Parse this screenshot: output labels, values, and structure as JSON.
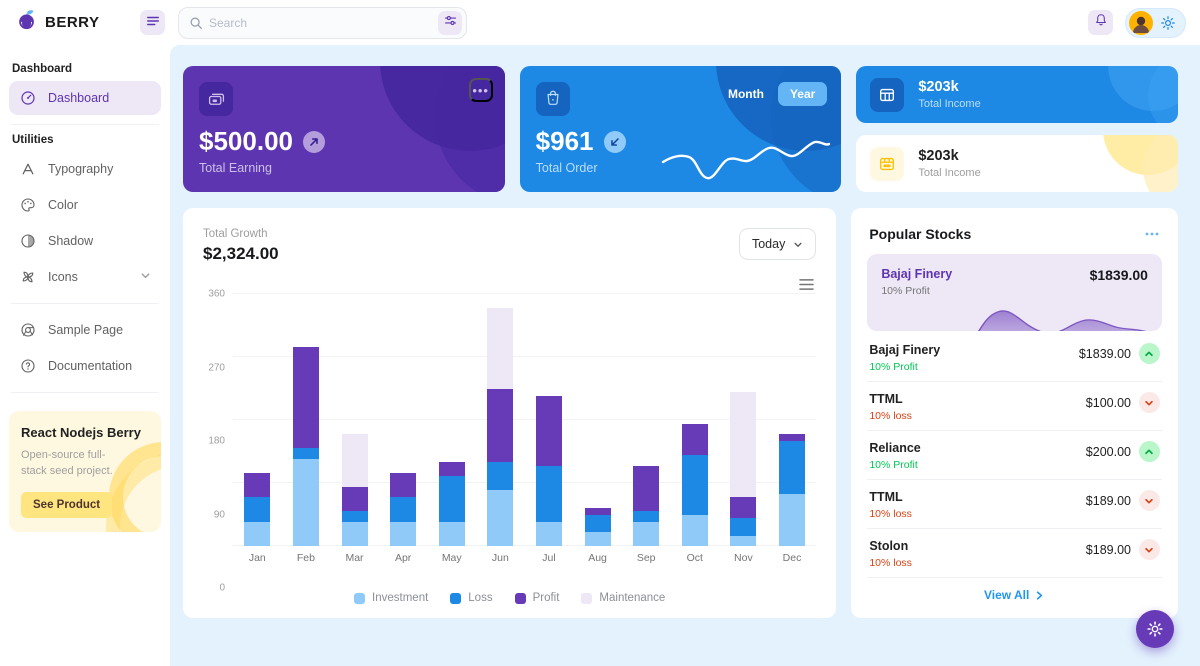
{
  "header": {
    "brand": "BERRY",
    "search_placeholder": "Search"
  },
  "sidebar": {
    "section_dashboard": "Dashboard",
    "item_dashboard": "Dashboard",
    "section_utilities": "Utilities",
    "utilities": [
      "Typography",
      "Color",
      "Shadow",
      "Icons"
    ],
    "pages": [
      "Sample Page",
      "Documentation"
    ],
    "promo": {
      "title": "React Nodejs Berry",
      "description": "Open-source full-stack seed project.",
      "button": "See Product"
    }
  },
  "cards": {
    "earning": {
      "value": "$500.00",
      "label": "Total Earning"
    },
    "order": {
      "value": "$961",
      "label": "Total Order",
      "toggle_month": "Month",
      "toggle_year": "Year"
    },
    "income_blue": {
      "value": "$203k",
      "label": "Total Income"
    },
    "income_light": {
      "value": "$203k",
      "label": "Total Income"
    }
  },
  "growth": {
    "title": "Total Growth",
    "value": "$2,324.00",
    "period": "Today"
  },
  "chart_data": {
    "type": "bar",
    "stacked": true,
    "title": "Total Growth",
    "categories": [
      "Jan",
      "Feb",
      "Mar",
      "Apr",
      "May",
      "Jun",
      "Jul",
      "Aug",
      "Sep",
      "Oct",
      "Nov",
      "Dec"
    ],
    "series": [
      {
        "name": "Investment",
        "color": "#90caf9",
        "values": [
          35,
          125,
          35,
          35,
          35,
          80,
          35,
          20,
          35,
          45,
          15,
          75
        ]
      },
      {
        "name": "Loss",
        "color": "#1e88e5",
        "values": [
          35,
          15,
          15,
          35,
          65,
          40,
          80,
          25,
          15,
          85,
          25,
          75
        ]
      },
      {
        "name": "Profit",
        "color": "#673ab7",
        "values": [
          35,
          145,
          35,
          35,
          20,
          105,
          100,
          10,
          65,
          45,
          30,
          10
        ]
      },
      {
        "name": "Maintenance",
        "color": "#ede7f6",
        "values": [
          0,
          0,
          75,
          0,
          0,
          115,
          0,
          0,
          0,
          0,
          150,
          0
        ]
      }
    ],
    "ylim": [
      0,
      360
    ],
    "yticks": [
      0,
      90,
      180,
      270,
      360
    ],
    "grid": true,
    "legend_position": "bottom"
  },
  "stocks": {
    "title": "Popular Stocks",
    "featured": {
      "name": "Bajaj Finery",
      "sub": "10% Profit",
      "price": "$1839.00"
    },
    "rows": [
      {
        "name": "Bajaj Finery",
        "sub": "10% Profit",
        "price": "$1839.00",
        "trend": "up"
      },
      {
        "name": "TTML",
        "sub": "10% loss",
        "price": "$100.00",
        "trend": "down"
      },
      {
        "name": "Reliance",
        "sub": "10% Profit",
        "price": "$200.00",
        "trend": "up"
      },
      {
        "name": "TTML",
        "sub": "10% loss",
        "price": "$189.00",
        "trend": "down"
      },
      {
        "name": "Stolon",
        "sub": "10% loss",
        "price": "$189.00",
        "trend": "down"
      }
    ],
    "view_all": "View All"
  },
  "colors": {
    "primary": "#2196f3",
    "primary_dark": "#1e88e5",
    "secondary": "#673ab7",
    "secondary_dark": "#5e35b1",
    "background": "#e3f2fd",
    "success": "#00c853",
    "error": "#d84315",
    "warning_bg": "#fff8e1"
  }
}
